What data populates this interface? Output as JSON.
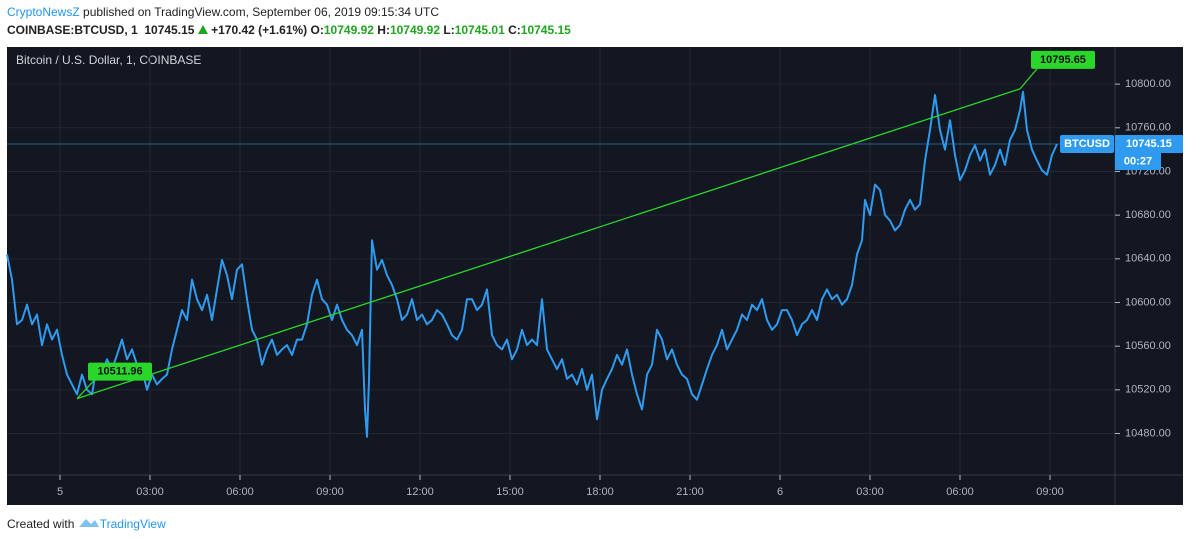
{
  "header": {
    "author": "CryptoNewsZ",
    "published": "published on TradingView.com, September 06, 2019 09:15:34 UTC",
    "symbol": "COINBASE:BTCUSD, 1",
    "price": "10745.15",
    "change": "+170.42 (+1.61%)",
    "ohlc": [
      {
        "label": "O:",
        "value": "10749.92"
      },
      {
        "label": "H:",
        "value": "10749.92"
      },
      {
        "label": "L:",
        "value": "10745.01"
      },
      {
        "label": "C:",
        "value": "10745.15"
      }
    ]
  },
  "chart_data": {
    "type": "line",
    "title": "Bitcoin / U.S. Dollar, 1, COINBASE",
    "x": [
      -106,
      -96,
      -86,
      -76,
      -66,
      -56,
      -46,
      -36,
      -26,
      -16,
      -6,
      4,
      14,
      24,
      34,
      44,
      54,
      64,
      74,
      84,
      94,
      104,
      114,
      124,
      134,
      144,
      154,
      164,
      174,
      184,
      194,
      204,
      214,
      224,
      234,
      244,
      254,
      264,
      274,
      284,
      294,
      304,
      314,
      324,
      334,
      344,
      354,
      364,
      374,
      384,
      394,
      404,
      414,
      424,
      434,
      444,
      454,
      464,
      474,
      484,
      494,
      504,
      514,
      524,
      534,
      544,
      554,
      564,
      574,
      584,
      594,
      604,
      610,
      614,
      618,
      624,
      634,
      644,
      654,
      664,
      674,
      684,
      694,
      704,
      714,
      724,
      734,
      744,
      754,
      764,
      774,
      784,
      794,
      804,
      814,
      824,
      834,
      844,
      854,
      864,
      874,
      884,
      894,
      904,
      914,
      924,
      934,
      944,
      954,
      964,
      974,
      984,
      994,
      1004,
      1014,
      1024,
      1034,
      1044,
      1054,
      1064,
      1074,
      1084,
      1094,
      1104,
      1114,
      1124,
      1134,
      1144,
      1154,
      1164,
      1174,
      1184,
      1194,
      1204,
      1214,
      1224,
      1234,
      1244,
      1254,
      1264,
      1274,
      1284,
      1294,
      1304,
      1314,
      1324,
      1334,
      1344,
      1354,
      1364,
      1374,
      1384,
      1394,
      1404,
      1414,
      1424,
      1434,
      1444,
      1454,
      1464,
      1474,
      1484,
      1494,
      1504,
      1514,
      1524,
      1534,
      1544,
      1554,
      1564,
      1574,
      1584,
      1594,
      1604,
      1610,
      1620,
      1630,
      1640,
      1650,
      1660,
      1670,
      1680,
      1690,
      1700,
      1710,
      1720,
      1730,
      1740,
      1750,
      1760,
      1770,
      1780,
      1790,
      1800,
      1810,
      1820,
      1830,
      1840,
      1850,
      1860,
      1870,
      1880,
      1890,
      1900,
      1910,
      1920,
      1926,
      1934,
      1944,
      1954,
      1964,
      1974,
      1984,
      1994
    ],
    "series": [
      {
        "name": "BTCUSD",
        "color": "#2e9bf0",
        "values": [
          10644,
          10621,
          10580,
          10584,
          10598,
          10580,
          10589,
          10561,
          10580,
          10566,
          10575,
          10552,
          10534,
          10525,
          10516,
          10534,
          10520,
          10516,
          10543,
          10534,
          10548,
          10539,
          10552,
          10566,
          10548,
          10557,
          10543,
          10539,
          10520,
          10534,
          10525,
          10530,
          10534,
          10557,
          10575,
          10593,
          10584,
          10621,
          10603,
          10593,
          10607,
          10584,
          10612,
          10639,
          10625,
          10603,
          10630,
          10635,
          10603,
          10575,
          10566,
          10543,
          10557,
          10566,
          10552,
          10557,
          10561,
          10552,
          10566,
          10566,
          10580,
          10607,
          10621,
          10603,
          10598,
          10584,
          10598,
          10584,
          10575,
          10570,
          10561,
          10575,
          10502,
          10477,
          10529,
          10657,
          10630,
          10639,
          10625,
          10616,
          10603,
          10584,
          10589,
          10603,
          10584,
          10589,
          10580,
          10584,
          10593,
          10589,
          10580,
          10570,
          10566,
          10575,
          10603,
          10603,
          10593,
          10598,
          10612,
          10570,
          10561,
          10557,
          10566,
          10548,
          10557,
          10575,
          10561,
          10566,
          10561,
          10603,
          10557,
          10548,
          10539,
          10548,
          10530,
          10534,
          10525,
          10539,
          10520,
          10534,
          10493,
          10520,
          10530,
          10539,
          10552,
          10543,
          10557,
          10534,
          10516,
          10502,
          10534,
          10543,
          10575,
          10566,
          10548,
          10557,
          10543,
          10534,
          10530,
          10516,
          10511,
          10525,
          10539,
          10552,
          10561,
          10575,
          10557,
          10566,
          10575,
          10589,
          10584,
          10598,
          10593,
          10603,
          10584,
          10575,
          10580,
          10593,
          10593,
          10584,
          10570,
          10580,
          10584,
          10593,
          10584,
          10603,
          10612,
          10603,
          10607,
          10598,
          10603,
          10616,
          10644,
          10657,
          10694,
          10680,
          10708,
          10703,
          10680,
          10675,
          10666,
          10671,
          10685,
          10694,
          10685,
          10690,
          10730,
          10758,
          10790,
          10758,
          10740,
          10767,
          10735,
          10712,
          10721,
          10735,
          10744,
          10730,
          10740,
          10717,
          10726,
          10740,
          10726,
          10749,
          10758,
          10776,
          10793,
          10758,
          10740,
          10730,
          10721,
          10717,
          10735,
          10745.15
        ]
      }
    ],
    "xlim": [
      -106,
      2110
    ],
    "xticks": [
      {
        "value": 0,
        "label": "5"
      },
      {
        "value": 180,
        "label": "03:00"
      },
      {
        "value": 360,
        "label": "06:00"
      },
      {
        "value": 540,
        "label": "09:00"
      },
      {
        "value": 720,
        "label": "12:00"
      },
      {
        "value": 900,
        "label": "15:00"
      },
      {
        "value": 1080,
        "label": "18:00"
      },
      {
        "value": 1260,
        "label": "21:00"
      },
      {
        "value": 1440,
        "label": "6"
      },
      {
        "value": 1620,
        "label": "03:00"
      },
      {
        "value": 1800,
        "label": "06:00"
      },
      {
        "value": 1980,
        "label": "09:00"
      }
    ],
    "ylim": [
      10442,
      10834
    ],
    "yticks": [
      {
        "value": 10480,
        "label": "10480.00"
      },
      {
        "value": 10520,
        "label": "10520.00"
      },
      {
        "value": 10560,
        "label": "10560.00"
      },
      {
        "value": 10600,
        "label": "10600.00"
      },
      {
        "value": 10640,
        "label": "10640.00"
      },
      {
        "value": 10680,
        "label": "10680.00"
      },
      {
        "value": 10720,
        "label": "10720.00"
      },
      {
        "value": 10760,
        "label": "10760.00"
      },
      {
        "value": 10800,
        "label": "10800.00"
      }
    ],
    "grid": true,
    "last_price": 10745.15,
    "countdown": "00:27",
    "trendline": {
      "color": "#2bd62b",
      "x": [
        34,
        1920
      ],
      "values": [
        10511.96,
        10795.65
      ]
    }
  },
  "footer": {
    "text": "Created with",
    "brand": "TradingView"
  }
}
